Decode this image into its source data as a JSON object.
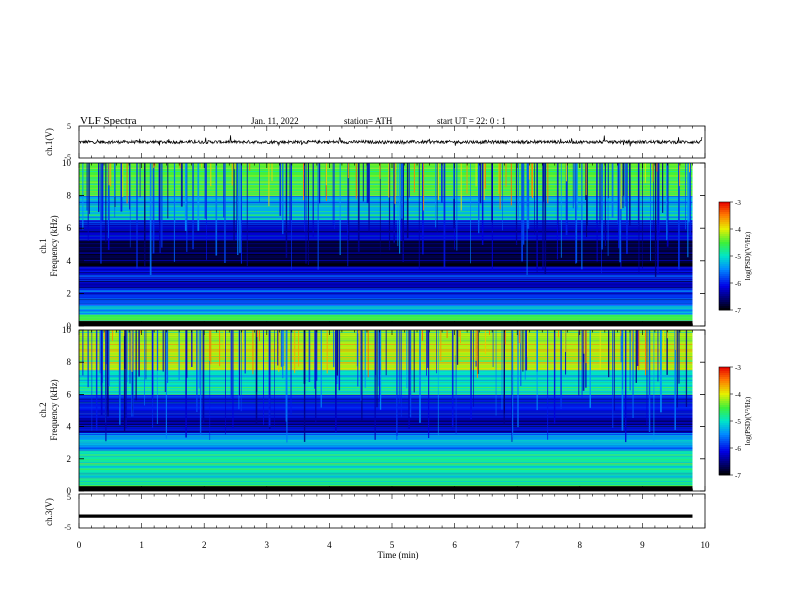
{
  "header": {
    "title": "VLF  Spectra",
    "date": "Jan.  11,  2022",
    "station": "station= ATH",
    "start": "start  UT  =    22: 0   : 1"
  },
  "panels": {
    "ch1_wave": {
      "ylabel": "ch.1(V)",
      "ticks": [
        "5",
        "-5"
      ]
    },
    "ch1_spec": {
      "ylabel_line1": "ch.1",
      "ylabel_line2": "Frequency  (kHz)"
    },
    "ch2_spec": {
      "ylabel_line1": "ch.2",
      "ylabel_line2": "Frequency  (kHz)"
    },
    "ch3_wave": {
      "ylabel": "ch.3(V)",
      "ticks": [
        "5",
        "-5"
      ]
    }
  },
  "colorbar": {
    "label": "log(PSD)(V²/Hz)",
    "ticks": [
      "-3",
      "-4",
      "-5",
      "-6",
      "-7"
    ]
  },
  "xaxis": {
    "label": "Time  (min)"
  },
  "chart_data": [
    {
      "type": "line",
      "name": "ch.1(V)",
      "xlim": [
        0,
        10
      ],
      "ylim": [
        -5,
        5
      ],
      "description_values": {
        "mean": 0,
        "noise_amplitude": 0.5,
        "spike_amplitude": 1.5
      },
      "ylabel": "ch.1(V)"
    },
    {
      "type": "heatmap",
      "ylabel": "ch.1 Frequency (kHz)",
      "xlabel": "Time (min)",
      "xlim": [
        0,
        10
      ],
      "ylim": [
        0,
        10
      ],
      "yticks": [
        0,
        2,
        4,
        6,
        8,
        10
      ],
      "data_end_min": 9.8,
      "colorbar": {
        "label": "log(PSD)(V²/Hz)",
        "range": [
          -7,
          -3
        ]
      },
      "bands": [
        {
          "f": [
            0.0,
            0.7
          ],
          "log_psd": -4.6
        },
        {
          "f": [
            0.7,
            1.3
          ],
          "log_psd": -5.5
        },
        {
          "f": [
            1.3,
            2.3
          ],
          "log_psd": -5.9
        },
        {
          "f": [
            2.3,
            3.0
          ],
          "log_psd": -6.3
        },
        {
          "f": [
            3.0,
            3.6
          ],
          "log_psd": -6.1
        },
        {
          "f": [
            3.6,
            5.3
          ],
          "log_psd": -6.8
        },
        {
          "f": [
            5.3,
            6.5
          ],
          "log_psd": -6.2
        },
        {
          "f": [
            6.5,
            8.0
          ],
          "log_psd": -5.3
        },
        {
          "f": [
            8.0,
            10.0
          ],
          "log_psd": -4.5
        }
      ]
    },
    {
      "type": "heatmap",
      "ylabel": "ch.2 Frequency (kHz)",
      "xlabel": "Time (min)",
      "xlim": [
        0,
        10
      ],
      "ylim": [
        0,
        10
      ],
      "yticks": [
        0,
        2,
        4,
        6,
        8,
        10
      ],
      "data_end_min": 9.8,
      "colorbar": {
        "label": "log(PSD)(V²/Hz)",
        "range": [
          -7,
          -3
        ]
      },
      "bands": [
        {
          "f": [
            0.0,
            0.8
          ],
          "log_psd": -4.8
        },
        {
          "f": [
            0.8,
            2.5
          ],
          "log_psd": -4.9
        },
        {
          "f": [
            2.5,
            3.6
          ],
          "log_psd": -5.4
        },
        {
          "f": [
            3.6,
            4.8
          ],
          "log_psd": -6.3
        },
        {
          "f": [
            4.8,
            6.0
          ],
          "log_psd": -6.0
        },
        {
          "f": [
            6.0,
            7.5
          ],
          "log_psd": -5.0
        },
        {
          "f": [
            7.5,
            10.0
          ],
          "log_psd": -4.2
        }
      ]
    },
    {
      "type": "line",
      "name": "ch.3(V)",
      "xlim": [
        0,
        10
      ],
      "ylim": [
        -5,
        5
      ],
      "constant_value": -1.5,
      "ylabel": "ch.3(V)"
    }
  ],
  "xticks": [
    "0",
    "1",
    "2",
    "3",
    "4",
    "5",
    "6",
    "7",
    "8",
    "9",
    "10"
  ],
  "yticks_freq": [
    "0",
    "2",
    "4",
    "6",
    "8",
    "10"
  ]
}
